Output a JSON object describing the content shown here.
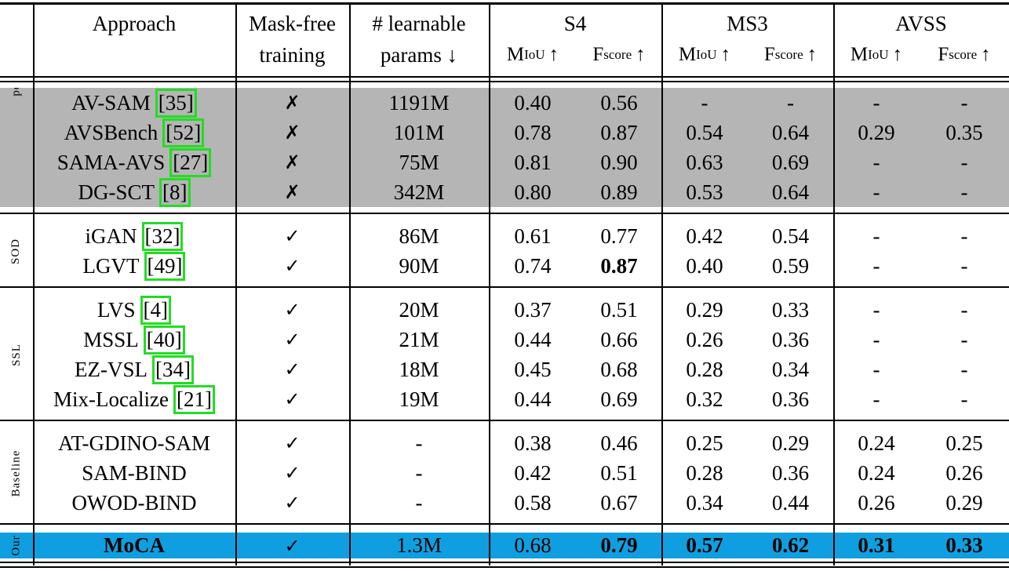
{
  "header": {
    "approach": "Approach",
    "mask_free": [
      "Mask-free",
      "training"
    ],
    "params": [
      "# learnable",
      "params ↓"
    ],
    "datasets": [
      "S4",
      "MS3",
      "AVSS"
    ],
    "metrics": [
      {
        "base": "M",
        "sub": "IoU",
        "arrow": "↑"
      },
      {
        "base": "F",
        "sub": "score",
        "arrow": "↑"
      }
    ]
  },
  "groups": [
    {
      "label": "pe",
      "background": "#b5b5b5",
      "rows": [
        {
          "approach": "AV-SAM",
          "cite": "[35]",
          "mask_free": "✗",
          "params": "1191M",
          "scores": [
            "0.40",
            "0.56",
            "-",
            "-",
            "-",
            "-"
          ]
        },
        {
          "approach": "AVSBench",
          "cite": "[52]",
          "mask_free": "✗",
          "params": "101M",
          "scores": [
            "0.78",
            "0.87",
            "0.54",
            "0.64",
            "0.29",
            "0.35"
          ]
        },
        {
          "approach": "SAMA-AVS",
          "cite": "[27]",
          "mask_free": "✗",
          "params": "75M",
          "scores": [
            "0.81",
            "0.90",
            "0.63",
            "0.69",
            "-",
            "-"
          ]
        },
        {
          "approach": "DG-SCT",
          "cite": "[8]",
          "mask_free": "✗",
          "params": "342M",
          "scores": [
            "0.80",
            "0.89",
            "0.53",
            "0.64",
            "-",
            "-"
          ]
        }
      ]
    },
    {
      "label": "SOD",
      "rows": [
        {
          "approach": "iGAN",
          "cite": "[32]",
          "mask_free": "✓",
          "params": "86M",
          "scores": [
            "0.61",
            "0.77",
            "0.42",
            "0.54",
            "-",
            "-"
          ]
        },
        {
          "approach": "LGVT",
          "cite": "[49]",
          "mask_free": "✓",
          "params": "90M",
          "scores": [
            "0.74",
            "0.87",
            "0.40",
            "0.59",
            "-",
            "-"
          ],
          "bold": [
            5
          ]
        }
      ]
    },
    {
      "label": "SSL",
      "rows": [
        {
          "approach": "LVS",
          "cite": "[4]",
          "mask_free": "✓",
          "params": "20M",
          "scores": [
            "0.37",
            "0.51",
            "0.29",
            "0.33",
            "-",
            "-"
          ]
        },
        {
          "approach": "MSSL",
          "cite": "[40]",
          "mask_free": "✓",
          "params": "21M",
          "scores": [
            "0.44",
            "0.66",
            "0.26",
            "0.36",
            "-",
            "-"
          ]
        },
        {
          "approach": "EZ-VSL",
          "cite": "[34]",
          "mask_free": "✓",
          "params": "18M",
          "scores": [
            "0.45",
            "0.68",
            "0.28",
            "0.34",
            "-",
            "-"
          ]
        },
        {
          "approach": "Mix-Localize",
          "cite": "[21]",
          "mask_free": "✓",
          "params": "19M",
          "scores": [
            "0.44",
            "0.69",
            "0.32",
            "0.36",
            "-",
            "-"
          ]
        }
      ]
    },
    {
      "label": "Baseline",
      "rows": [
        {
          "approach": "AT-GDINO-SAM",
          "mask_free": "✓",
          "params": "-",
          "scores": [
            "0.38",
            "0.46",
            "0.25",
            "0.29",
            "0.24",
            "0.25"
          ]
        },
        {
          "approach": "SAM-BIND",
          "mask_free": "✓",
          "params": "-",
          "scores": [
            "0.42",
            "0.51",
            "0.28",
            "0.36",
            "0.24",
            "0.26"
          ]
        },
        {
          "approach": "OWOD-BIND",
          "mask_free": "✓",
          "params": "-",
          "scores": [
            "0.58",
            "0.67",
            "0.34",
            "0.44",
            "0.26",
            "0.29"
          ]
        }
      ]
    },
    {
      "label": "Our",
      "background": "#0f9fe0",
      "rows": [
        {
          "approach": "MoCA",
          "mask_free": "✓",
          "params": "1.3M",
          "scores": [
            "0.68",
            "0.79",
            "0.57",
            "0.62",
            "0.31",
            "0.33"
          ],
          "bold": [
            0,
            2,
            3,
            5,
            6,
            7,
            8,
            9
          ]
        }
      ]
    }
  ]
}
